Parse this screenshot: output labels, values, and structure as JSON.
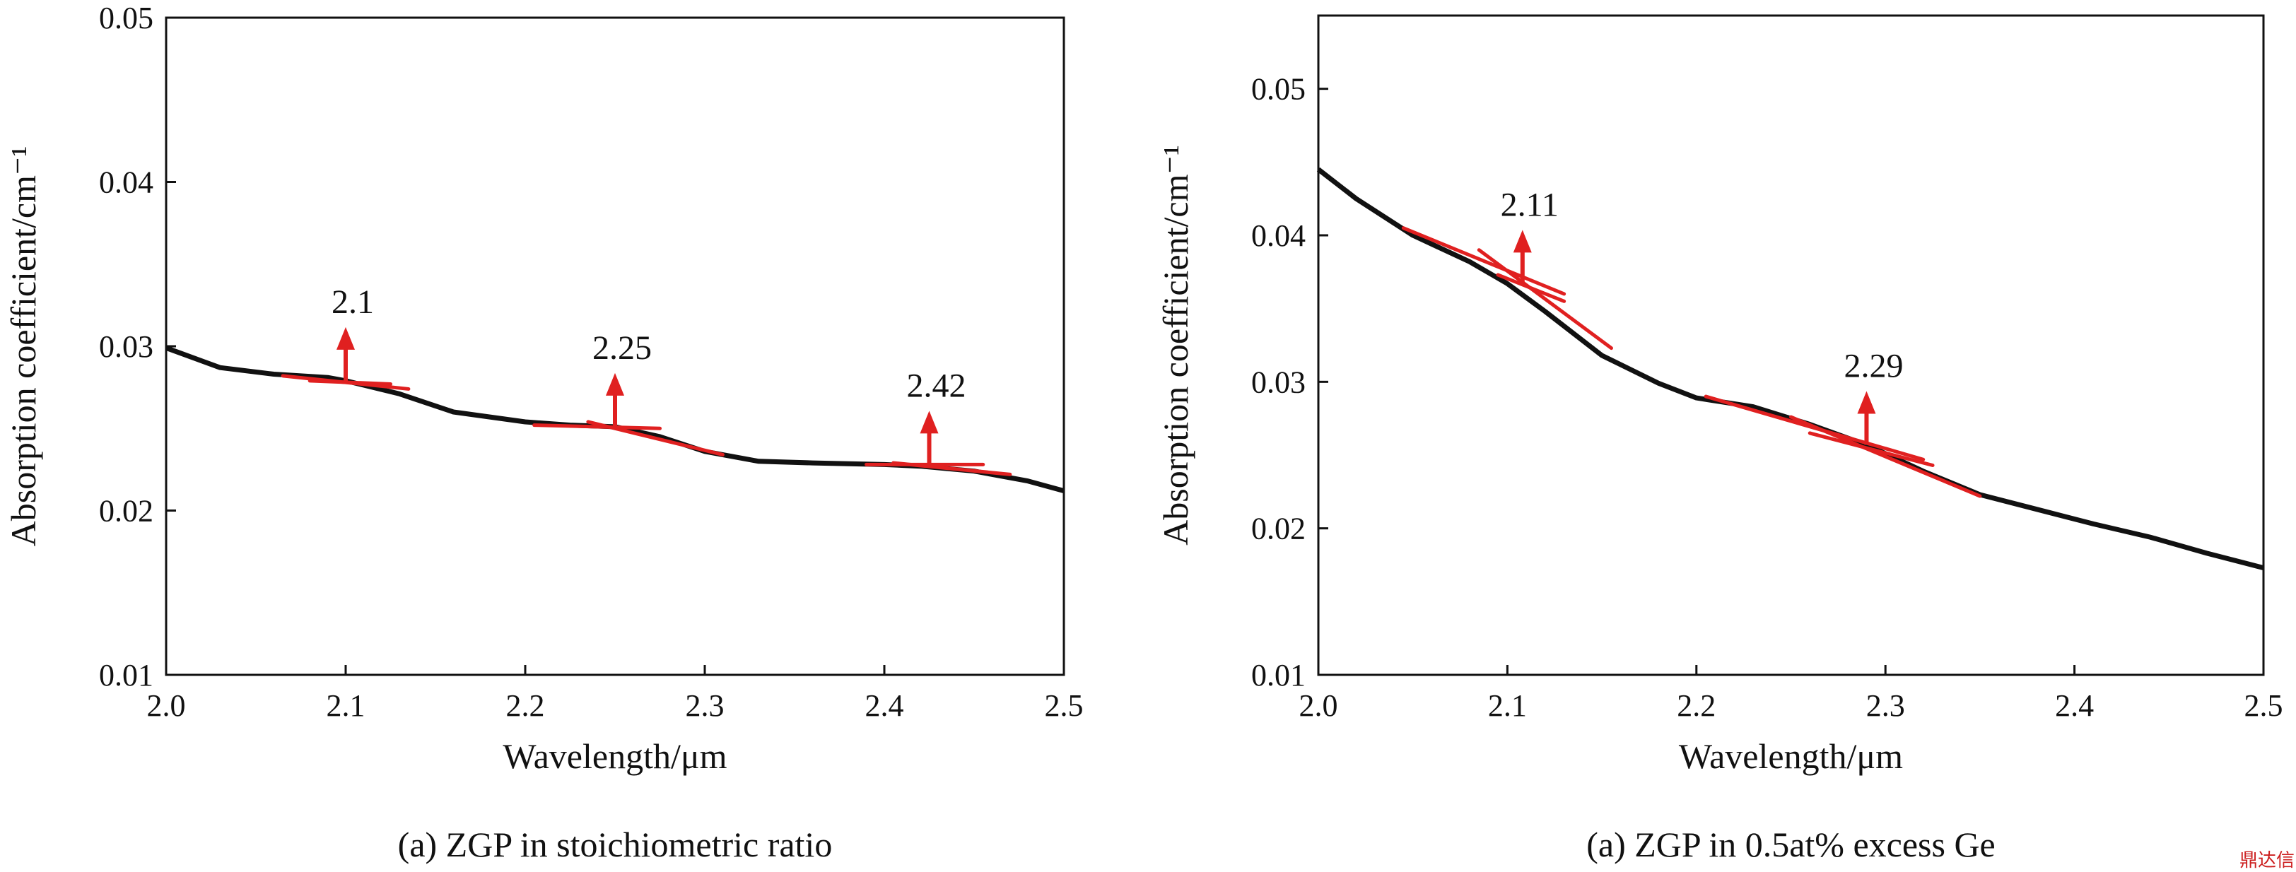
{
  "chart_data": [
    {
      "type": "line",
      "xlabel": "Wavelength/μm",
      "ylabel": "Absorption coefficient/cm⁻¹",
      "caption": "(a) ZGP in stoichiometric ratio",
      "xlim": [
        2.0,
        2.5
      ],
      "ylim": [
        0.01,
        0.05
      ],
      "xticks": [
        "2.0",
        "2.1",
        "2.2",
        "2.3",
        "2.4",
        "2.5"
      ],
      "yticks": [
        "0.01",
        "0.02",
        "0.03",
        "0.04",
        "0.05"
      ],
      "grid": false,
      "series": [
        {
          "x": [
            2.0,
            2.03,
            2.06,
            2.09,
            2.1,
            2.13,
            2.16,
            2.2,
            2.225,
            2.25,
            2.275,
            2.3,
            2.33,
            2.36,
            2.4,
            2.42,
            2.45,
            2.48,
            2.5
          ],
          "values": [
            0.0299,
            0.0287,
            0.0283,
            0.0281,
            0.0279,
            0.0271,
            0.026,
            0.0254,
            0.0252,
            0.0251,
            0.0245,
            0.0236,
            0.023,
            0.0229,
            0.0228,
            0.0227,
            0.0224,
            0.0218,
            0.0212
          ]
        }
      ],
      "annotations": [
        {
          "label": "2.1",
          "x": 2.1,
          "y": 0.0279,
          "tangents": [
            {
              "x": [
                2.065,
                2.135
              ],
              "y": [
                0.0282,
                0.0274
              ]
            },
            {
              "x": [
                2.08,
                2.125
              ],
              "y": [
                0.0279,
                0.0277
              ]
            }
          ]
        },
        {
          "label": "2.25",
          "x": 2.25,
          "y": 0.0251,
          "tangents": [
            {
              "x": [
                2.205,
                2.275
              ],
              "y": [
                0.0252,
                0.025
              ]
            },
            {
              "x": [
                2.235,
                2.31
              ],
              "y": [
                0.0254,
                0.0234
              ]
            }
          ]
        },
        {
          "label": "2.42",
          "x": 2.425,
          "y": 0.0228,
          "tangents": [
            {
              "x": [
                2.39,
                2.455
              ],
              "y": [
                0.0228,
                0.0228
              ]
            },
            {
              "x": [
                2.405,
                2.47
              ],
              "y": [
                0.0229,
                0.0222
              ]
            }
          ]
        }
      ]
    },
    {
      "type": "line",
      "xlabel": "Wavelength/μm",
      "ylabel": "Absorption coefficient/cm⁻¹",
      "caption": "(a) ZGP in 0.5at% excess Ge",
      "xlim": [
        2.0,
        2.5
      ],
      "ylim": [
        0.01,
        0.055
      ],
      "xticks": [
        "2.0",
        "2.1",
        "2.2",
        "2.3",
        "2.4",
        "2.5"
      ],
      "yticks": [
        "0.01",
        "0.02",
        "0.03",
        "0.04",
        "0.05"
      ],
      "grid": false,
      "series": [
        {
          "x": [
            2.0,
            2.02,
            2.05,
            2.08,
            2.1,
            2.12,
            2.15,
            2.18,
            2.2,
            2.23,
            2.26,
            2.29,
            2.32,
            2.35,
            2.38,
            2.41,
            2.44,
            2.47,
            2.5
          ],
          "values": [
            0.0445,
            0.0425,
            0.04,
            0.0382,
            0.0367,
            0.0348,
            0.0318,
            0.0299,
            0.0289,
            0.0283,
            0.0271,
            0.0257,
            0.0239,
            0.0223,
            0.0213,
            0.0203,
            0.0194,
            0.0183,
            0.0173
          ]
        }
      ],
      "annotations": [
        {
          "label": "2.11",
          "x": 2.108,
          "y": 0.0367,
          "tangents": [
            {
              "x": [
                2.045,
                2.13
              ],
              "y": [
                0.0405,
                0.036
              ]
            },
            {
              "x": [
                2.085,
                2.155
              ],
              "y": [
                0.039,
                0.0323
              ]
            },
            {
              "x": [
                2.095,
                2.13
              ],
              "y": [
                0.0373,
                0.0355
              ]
            }
          ]
        },
        {
          "label": "2.29",
          "x": 2.29,
          "y": 0.0257,
          "tangents": [
            {
              "x": [
                2.205,
                2.32
              ],
              "y": [
                0.029,
                0.0247
              ]
            },
            {
              "x": [
                2.25,
                2.35
              ],
              "y": [
                0.0276,
                0.0222
              ]
            },
            {
              "x": [
                2.26,
                2.325
              ],
              "y": [
                0.0265,
                0.0243
              ]
            }
          ]
        }
      ]
    }
  ],
  "watermark": "鼎达信"
}
